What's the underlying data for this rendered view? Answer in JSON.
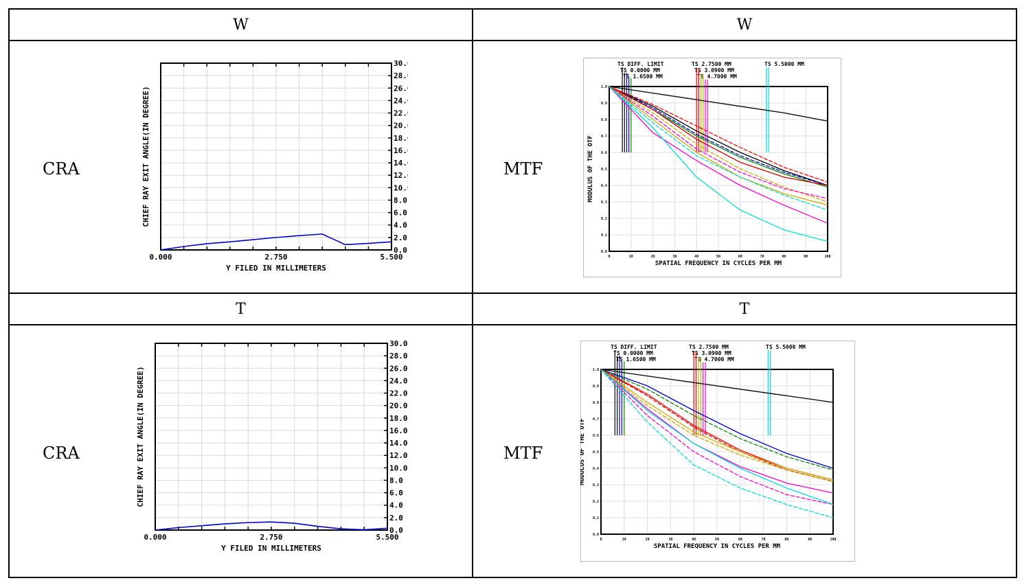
{
  "headers": {
    "row1_left": "W",
    "row1_right": "W",
    "row2_left": "T",
    "row2_right": "T"
  },
  "labels": {
    "cra": "CRA",
    "mtf": "MTF"
  },
  "chart_data": [
    {
      "id": "cra_w",
      "type": "line",
      "xlabel": "Y FILED IN MILLIMETERS",
      "ylabel": "CHIEF RAY EXIT ANGLE(IN DEGREE)",
      "xlim": [
        0,
        5.5
      ],
      "ylim": [
        0,
        30
      ],
      "x_ticks": [
        "0.000",
        "2.750",
        "5.500"
      ],
      "y_ticks": [
        "0.0",
        "2.0",
        "4.0",
        "6.0",
        "8.0",
        "10.0",
        "12.0",
        "14.0",
        "16.0",
        "18.0",
        "20.0",
        "22.0",
        "24.0",
        "26.0",
        "28.0",
        "30.0"
      ],
      "grid": true,
      "series": [
        {
          "color": "#0000cc",
          "x": [
            0,
            0.55,
            1.1,
            1.65,
            2.2,
            2.75,
            3.3,
            3.85,
            4.4,
            4.95,
            5.5
          ],
          "y": [
            0,
            0.55,
            1.0,
            1.3,
            1.65,
            2.0,
            2.3,
            2.55,
            0.85,
            1.05,
            1.3
          ]
        }
      ]
    },
    {
      "id": "cra_t",
      "type": "line",
      "xlabel": "Y FILED IN MILLIMETERS",
      "ylabel": "CHIEF RAY EXIT ANGLE(IN DEGREE)",
      "xlim": [
        0,
        5.5
      ],
      "ylim": [
        0,
        30
      ],
      "x_ticks": [
        "0.000",
        "2.750",
        "5.500"
      ],
      "y_ticks": [
        "0.0",
        "2.0",
        "4.0",
        "6.0",
        "8.0",
        "10.0",
        "12.0",
        "14.0",
        "16.0",
        "18.0",
        "20.0",
        "22.0",
        "24.0",
        "26.0",
        "28.0",
        "30.0"
      ],
      "grid": true,
      "series": [
        {
          "color": "#0000cc",
          "x": [
            0,
            0.55,
            1.1,
            1.65,
            2.2,
            2.75,
            3.3,
            3.85,
            4.4,
            4.95,
            5.5
          ],
          "y": [
            0,
            0.4,
            0.7,
            1.0,
            1.2,
            1.3,
            1.1,
            0.6,
            0.2,
            0.05,
            0.3
          ]
        }
      ]
    },
    {
      "id": "mtf_w",
      "type": "line",
      "xlabel": "SPATIAL FREQUENCY IN CYCLES PER MM",
      "ylabel": "MODULUS OF THE OTF",
      "xlim": [
        0,
        100
      ],
      "ylim": [
        0,
        1
      ],
      "x_ticks": [
        "0",
        "10",
        "20",
        "30",
        "40",
        "50",
        "60",
        "70",
        "80",
        "90",
        "100"
      ],
      "y_ticks": [
        "0.0",
        "0.1",
        "0.2",
        "0.3",
        "0.4",
        "0.5",
        "0.6",
        "0.7",
        "0.8",
        "0.9",
        "1.0"
      ],
      "legend": [
        "TS DIFF. LIMIT",
        "TS 0.0000 MM",
        "TS 1.6500 MM",
        "TS 2.7500 MM",
        "TS 3.0900 MM",
        "TS 4.7000 MM",
        "TS 5.5000 MM"
      ],
      "grid": true,
      "series": [
        {
          "color": "#000000",
          "x": [
            0,
            20,
            40,
            60,
            80,
            100
          ],
          "y": [
            1.0,
            0.96,
            0.92,
            0.88,
            0.84,
            0.79
          ]
        },
        {
          "color": "#000000",
          "x": [
            0,
            20,
            40,
            60,
            80,
            100
          ],
          "y": [
            1.0,
            0.88,
            0.73,
            0.6,
            0.49,
            0.4
          ]
        },
        {
          "color": "#0000cc",
          "x": [
            0,
            20,
            40,
            60,
            80,
            100
          ],
          "y": [
            1.0,
            0.87,
            0.71,
            0.58,
            0.48,
            0.4
          ]
        },
        {
          "color": "#008800",
          "x": [
            0,
            20,
            40,
            60,
            80,
            100
          ],
          "y": [
            1.0,
            0.86,
            0.7,
            0.57,
            0.47,
            0.39
          ]
        },
        {
          "color": "#ff0000",
          "x": [
            0,
            20,
            40,
            60,
            80,
            100
          ],
          "y": [
            1.0,
            0.89,
            0.76,
            0.63,
            0.51,
            0.42
          ]
        },
        {
          "color": "#cc0000",
          "x": [
            0,
            20,
            40,
            60,
            80,
            100
          ],
          "y": [
            1.0,
            0.86,
            0.68,
            0.54,
            0.45,
            0.4
          ]
        },
        {
          "color": "#ccaa00",
          "x": [
            0,
            20,
            40,
            60,
            80,
            100
          ],
          "y": [
            1.0,
            0.84,
            0.65,
            0.5,
            0.39,
            0.3
          ]
        },
        {
          "color": "#ccaa00",
          "x": [
            0,
            20,
            40,
            60,
            80,
            100
          ],
          "y": [
            1.0,
            0.8,
            0.6,
            0.45,
            0.35,
            0.28
          ]
        },
        {
          "color": "#ff00cc",
          "x": [
            0,
            20,
            40,
            60,
            80,
            100
          ],
          "y": [
            1.0,
            0.82,
            0.62,
            0.48,
            0.38,
            0.32
          ]
        },
        {
          "color": "#ff00cc",
          "x": [
            0,
            20,
            40,
            60,
            80,
            100
          ],
          "y": [
            1.0,
            0.72,
            0.55,
            0.4,
            0.28,
            0.17
          ]
        },
        {
          "color": "#00dddd",
          "x": [
            0,
            20,
            40,
            60,
            80,
            100
          ],
          "y": [
            1.0,
            0.78,
            0.58,
            0.45,
            0.34,
            0.25
          ]
        },
        {
          "color": "#00dddd",
          "x": [
            0,
            20,
            40,
            60,
            80,
            100
          ],
          "y": [
            1.0,
            0.75,
            0.45,
            0.25,
            0.13,
            0.06
          ]
        }
      ]
    },
    {
      "id": "mtf_t",
      "type": "line",
      "xlabel": "SPATIAL FREQUENCY IN CYCLES PER MM",
      "ylabel": "MODULUS OF THE OTF",
      "xlim": [
        0,
        100
      ],
      "ylim": [
        0,
        1
      ],
      "x_ticks": [
        "0",
        "10",
        "20",
        "30",
        "40",
        "50",
        "60",
        "70",
        "80",
        "90",
        "100"
      ],
      "y_ticks": [
        "0.0",
        "0.1",
        "0.2",
        "0.3",
        "0.4",
        "0.5",
        "0.6",
        "0.7",
        "0.8",
        "0.9",
        "1.0"
      ],
      "legend": [
        "TS DIFF. LIMIT",
        "TS 0.0000 MM",
        "TS 1.6500 MM",
        "TS 2.7500 MM",
        "TS 3.0900 MM",
        "TS 4.7000 MM",
        "TS 5.5000 MM"
      ],
      "grid": true,
      "series": [
        {
          "color": "#000000",
          "x": [
            0,
            20,
            40,
            60,
            80,
            100
          ],
          "y": [
            1.0,
            0.96,
            0.92,
            0.88,
            0.84,
            0.8
          ]
        },
        {
          "color": "#0000cc",
          "x": [
            0,
            20,
            40,
            60,
            80,
            100
          ],
          "y": [
            1.0,
            0.9,
            0.75,
            0.61,
            0.49,
            0.4
          ]
        },
        {
          "color": "#008800",
          "x": [
            0,
            20,
            40,
            60,
            80,
            100
          ],
          "y": [
            1.0,
            0.88,
            0.72,
            0.58,
            0.47,
            0.39
          ]
        },
        {
          "color": "#ff0000",
          "x": [
            0,
            20,
            40,
            60,
            80,
            100
          ],
          "y": [
            1.0,
            0.85,
            0.66,
            0.51,
            0.4,
            0.33
          ]
        },
        {
          "color": "#cc0000",
          "x": [
            0,
            20,
            40,
            60,
            80,
            100
          ],
          "y": [
            1.0,
            0.84,
            0.65,
            0.5,
            0.39,
            0.32
          ]
        },
        {
          "color": "#ccaa00",
          "x": [
            0,
            20,
            40,
            60,
            80,
            100
          ],
          "y": [
            1.0,
            0.8,
            0.62,
            0.5,
            0.4,
            0.33
          ]
        },
        {
          "color": "#ccaa00",
          "x": [
            0,
            20,
            40,
            60,
            80,
            100
          ],
          "y": [
            1.0,
            0.78,
            0.6,
            0.48,
            0.39,
            0.32
          ]
        },
        {
          "color": "#ff00cc",
          "x": [
            0,
            20,
            40,
            60,
            80,
            100
          ],
          "y": [
            1.0,
            0.76,
            0.55,
            0.41,
            0.31,
            0.25
          ]
        },
        {
          "color": "#ff00cc",
          "x": [
            0,
            20,
            40,
            60,
            80,
            100
          ],
          "y": [
            1.0,
            0.72,
            0.5,
            0.35,
            0.24,
            0.18
          ]
        },
        {
          "color": "#00dddd",
          "x": [
            0,
            20,
            40,
            60,
            80,
            100
          ],
          "y": [
            1.0,
            0.75,
            0.55,
            0.4,
            0.28,
            0.18
          ]
        },
        {
          "color": "#00dddd",
          "x": [
            0,
            20,
            40,
            60,
            80,
            100
          ],
          "y": [
            1.0,
            0.68,
            0.42,
            0.28,
            0.18,
            0.1
          ]
        }
      ]
    }
  ]
}
